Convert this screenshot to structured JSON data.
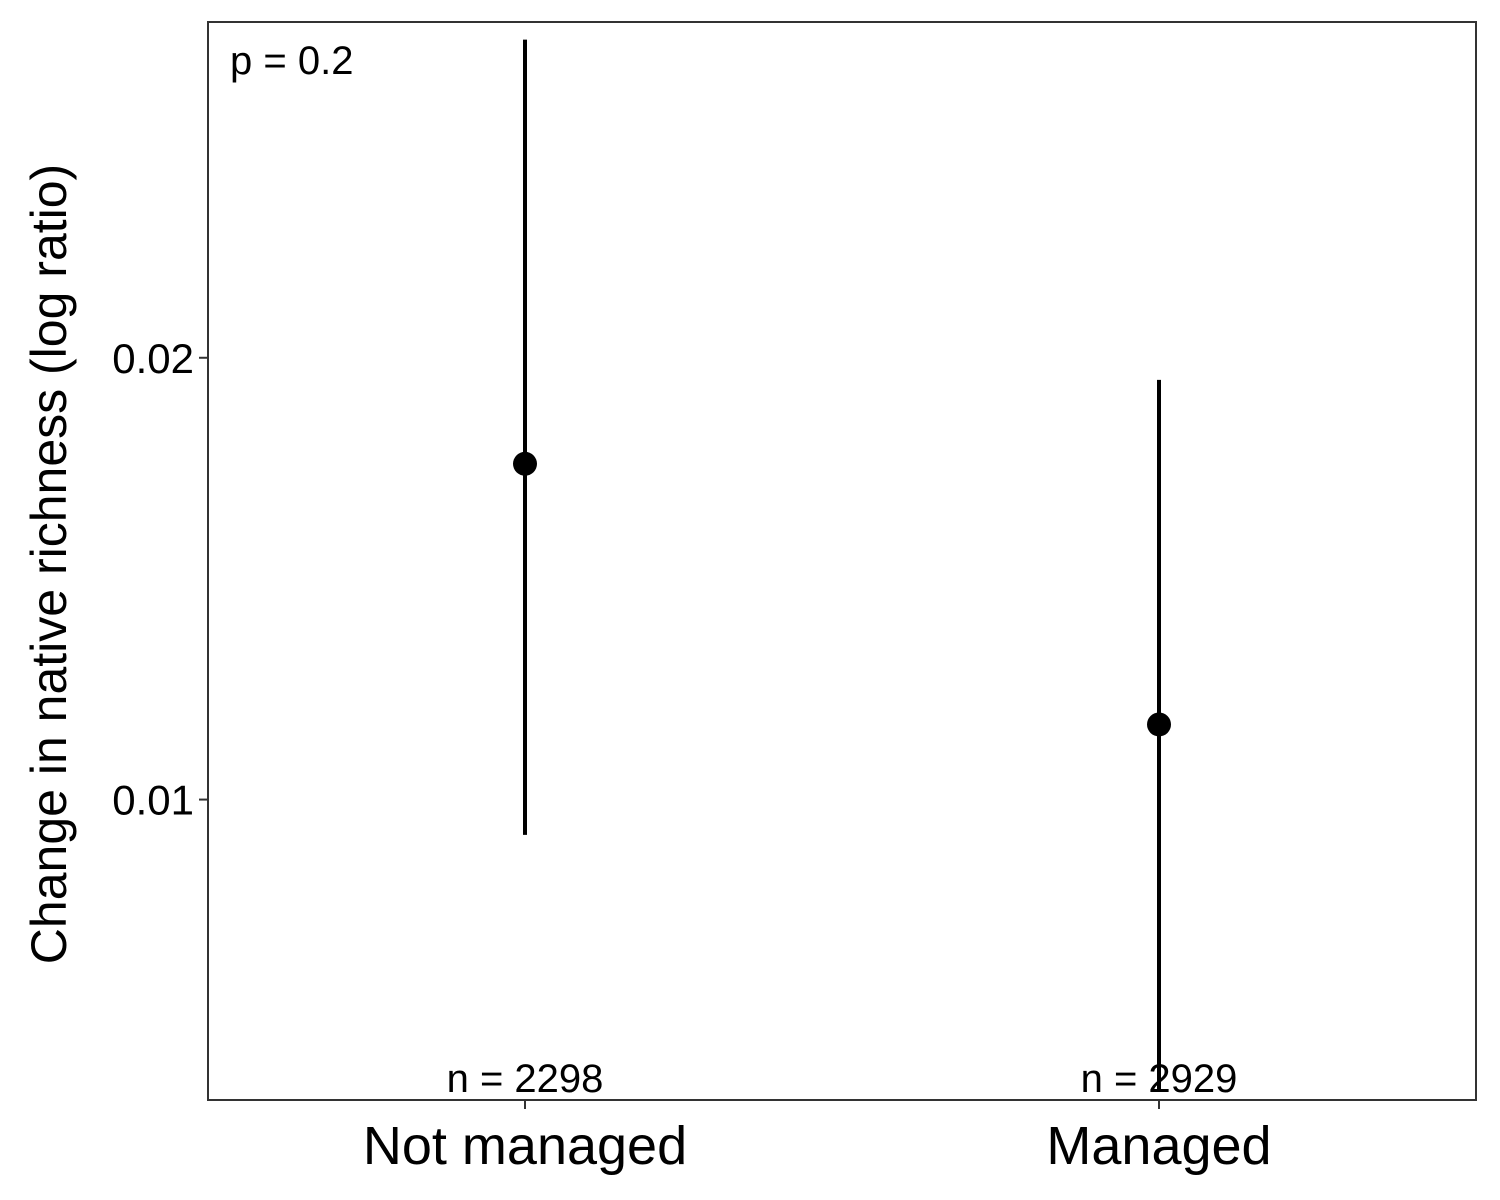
{
  "chart_data": {
    "type": "scatter",
    "subtype": "point-range",
    "title": "",
    "xlabel": "",
    "ylabel": "Change in native richness (log ratio)",
    "categories": [
      "Not managed",
      "Managed"
    ],
    "values": [
      0.0176,
      0.0117
    ],
    "lower": [
      0.0092,
      0.0034
    ],
    "upper": [
      0.0272,
      0.0195
    ],
    "n_labels": [
      "n = 2298",
      "n = 2929"
    ],
    "yticks": [
      0.01,
      0.02
    ],
    "ytick_labels": [
      "0.01",
      "0.02"
    ],
    "ylim": [
      0.0032,
      0.0276
    ],
    "annotation": "p = 0.2",
    "annotation_position": "top-left",
    "grid": false,
    "legend": "none",
    "point_color": "#000000",
    "axis_color": "#333333"
  }
}
